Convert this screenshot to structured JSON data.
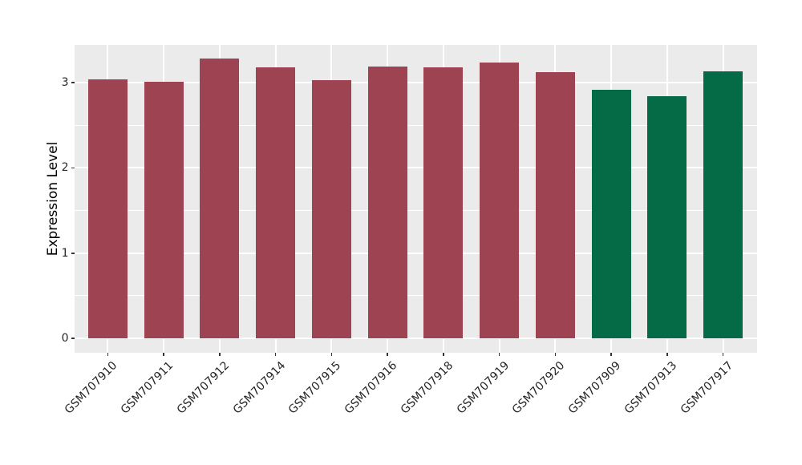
{
  "chart_data": {
    "type": "bar",
    "title": "",
    "xlabel": "",
    "ylabel": "Expression Level",
    "categories": [
      "GSM707910",
      "GSM707911",
      "GSM707912",
      "GSM707914",
      "GSM707915",
      "GSM707916",
      "GSM707918",
      "GSM707919",
      "GSM707920",
      "GSM707909",
      "GSM707913",
      "GSM707917"
    ],
    "values": [
      3.04,
      3.01,
      3.28,
      3.18,
      3.03,
      3.19,
      3.18,
      3.24,
      3.12,
      2.92,
      2.84,
      3.13
    ],
    "bar_colors": [
      "#9D4351",
      "#9D4351",
      "#9D4351",
      "#9D4351",
      "#9D4351",
      "#9D4351",
      "#9D4351",
      "#9D4351",
      "#9D4351",
      "#056A46",
      "#056A46",
      "#056A46"
    ],
    "group_colors": {
      "main": "#9D4351",
      "highlight": "#056A46"
    },
    "yticks": [
      0,
      1,
      2,
      3
    ],
    "yticks_minor": [
      0.5,
      1.5,
      2.5
    ],
    "ylim": [
      -0.164,
      3.444
    ],
    "bar_width_fraction": 0.7,
    "panel_bg": "#EBEBEB",
    "grid_color": "#FFFFFF",
    "tick_color": "#333333",
    "axis_text_color": "#262626",
    "grid": "on",
    "legend": "none"
  }
}
